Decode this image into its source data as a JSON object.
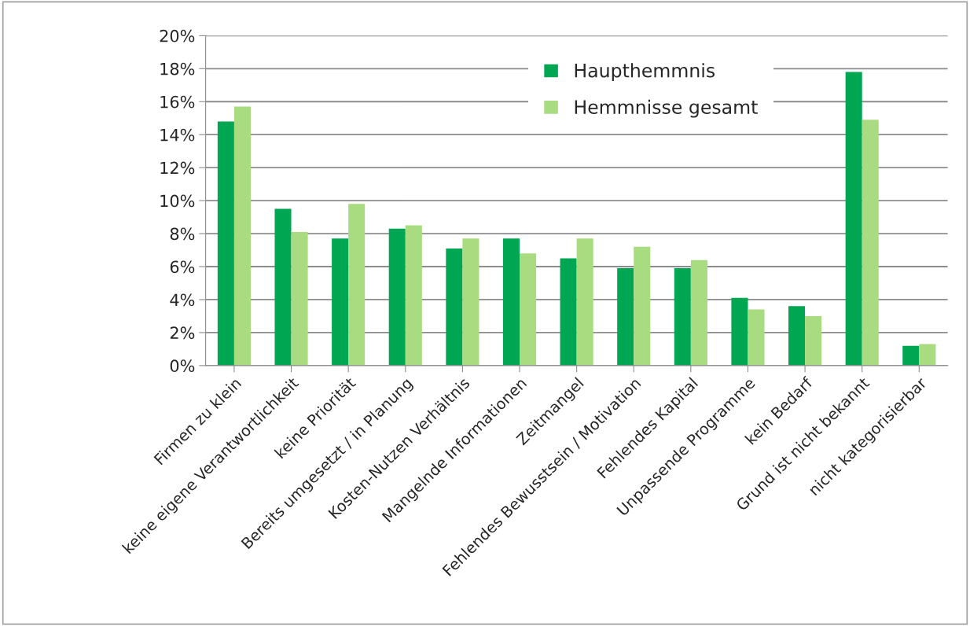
{
  "chart_data": {
    "type": "bar",
    "categories": [
      "Firmen zu klein",
      "keine eigene Verantwortlichkeit",
      "keine Priorität",
      "Bereits umgesetzt / in Planung",
      "Kosten-Nutzen Verhältnis",
      "Mangelnde Informationen",
      "Zeitmangel",
      "Fehlendes Bewusstsein / Motivation",
      "Fehlendes Kapital",
      "Unpassende Programme",
      "kein Bedarf",
      "Grund ist nicht bekannt",
      "nicht kategorisierbar"
    ],
    "series": [
      {
        "name": "Haupthemmnis",
        "color": "#00a651",
        "values": [
          14.8,
          9.5,
          7.7,
          8.3,
          7.1,
          7.7,
          6.5,
          5.9,
          5.9,
          4.1,
          3.6,
          17.8,
          1.2
        ]
      },
      {
        "name": "Hemmnisse gesamt",
        "color": "#a9db80",
        "values": [
          15.7,
          8.1,
          9.8,
          8.5,
          7.7,
          6.8,
          7.7,
          7.2,
          6.4,
          3.4,
          3.0,
          14.9,
          1.3
        ]
      }
    ],
    "ylim": [
      0,
      20
    ],
    "yticks": [
      {
        "value": 0,
        "label": "0%"
      },
      {
        "value": 2,
        "label": "2%"
      },
      {
        "value": 4,
        "label": "4%"
      },
      {
        "value": 6,
        "label": "6%"
      },
      {
        "value": 8,
        "label": "8%"
      },
      {
        "value": 10,
        "label": "10%"
      },
      {
        "value": 12,
        "label": "12%"
      },
      {
        "value": 14,
        "label": "14%"
      },
      {
        "value": 16,
        "label": "16%"
      },
      {
        "value": 18,
        "label": "18%"
      },
      {
        "value": 20,
        "label": "20%"
      }
    ],
    "grid": "y",
    "legend": "top"
  }
}
